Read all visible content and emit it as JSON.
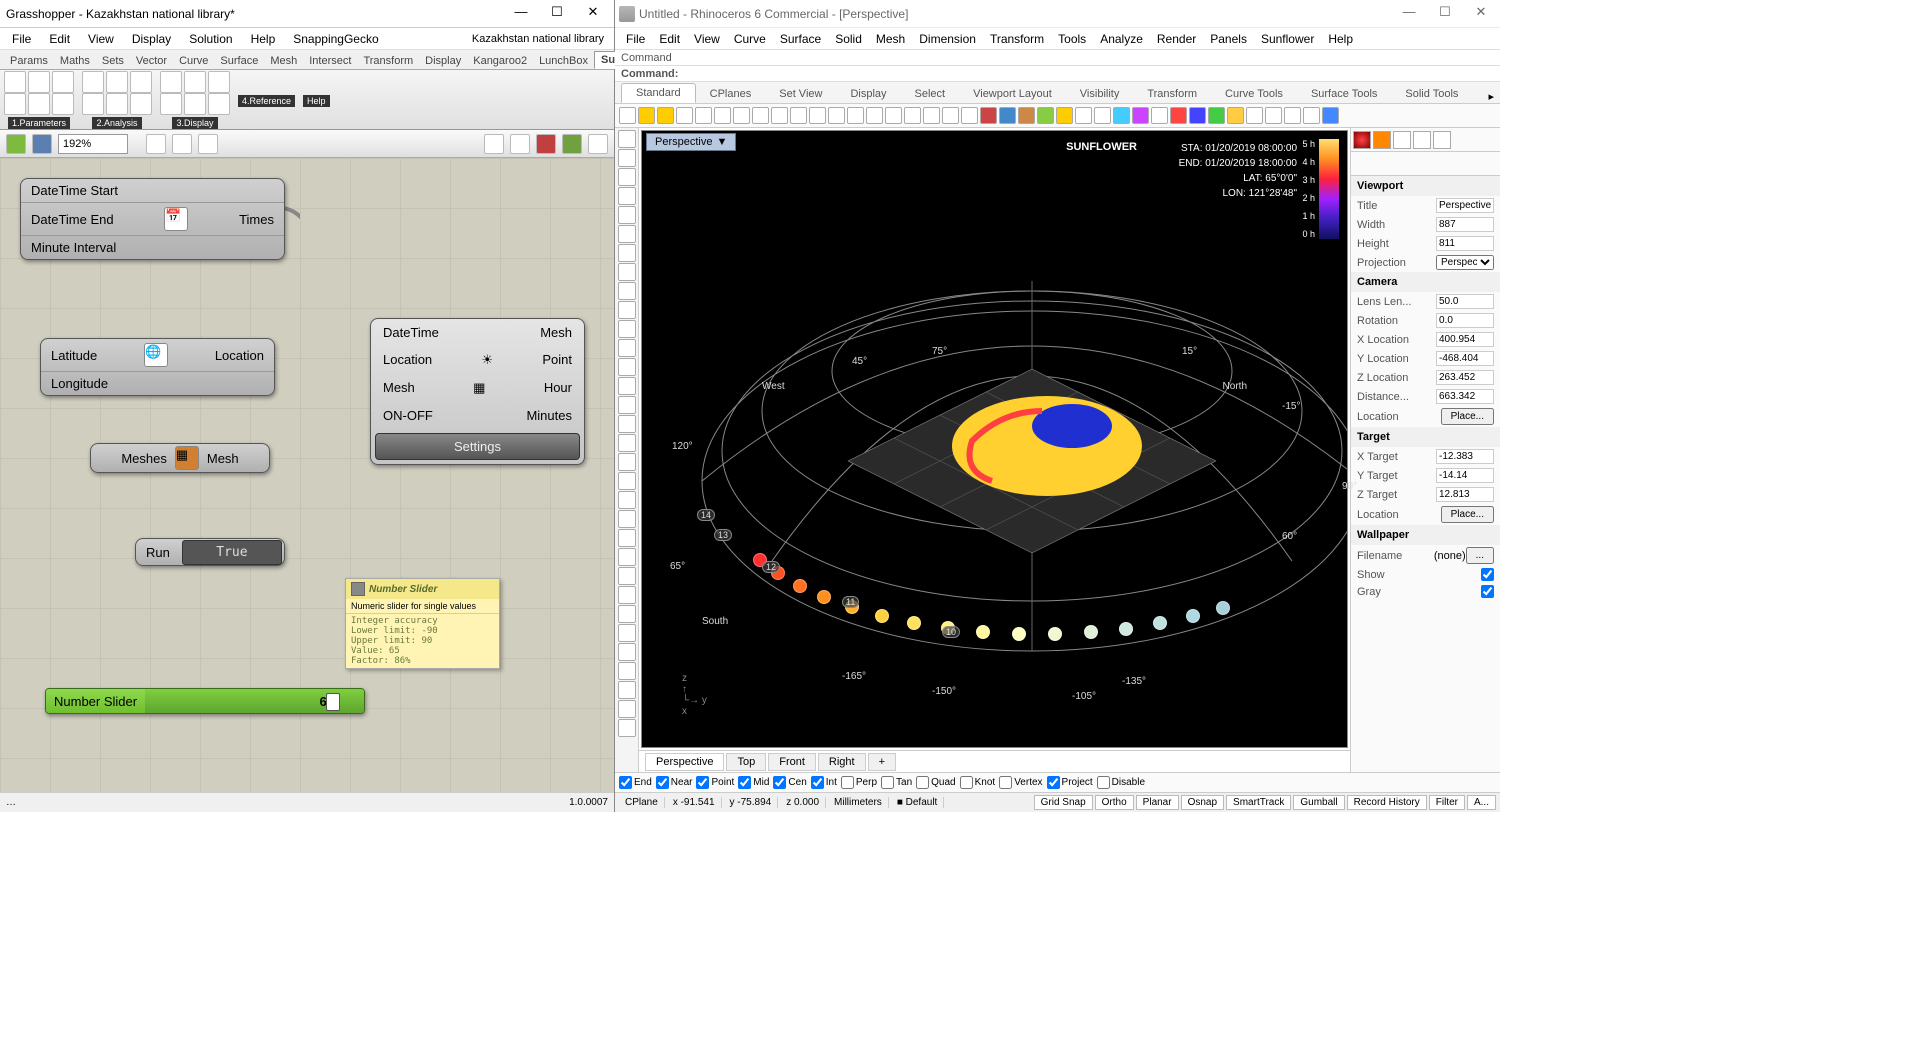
{
  "grasshopper": {
    "title": "Grasshopper - Kazakhstan national library*",
    "menus": [
      "File",
      "Edit",
      "View",
      "Display",
      "Solution",
      "Help",
      "SnappingGecko"
    ],
    "doc_label": "Kazakhstan national library",
    "tabs": [
      "Params",
      "Maths",
      "Sets",
      "Vector",
      "Curve",
      "Surface",
      "Mesh",
      "Intersect",
      "Transform",
      "Display",
      "Kangaroo2",
      "LunchBox",
      "Sunflower"
    ],
    "active_tab": "Sunflower",
    "ribbon_groups": [
      "1.Parameters",
      "2.Analysis",
      "3.Display",
      "4.Reference",
      "Help"
    ],
    "zoom": "192%",
    "version": "1.0.0007",
    "nodes": {
      "datetime": {
        "in": [
          "DateTime Start",
          "DateTime End",
          "Minute Interval"
        ],
        "out": "Times"
      },
      "latlon": {
        "in": [
          "Latitude",
          "Longitude"
        ],
        "out": "Location"
      },
      "meshes": {
        "in": "Meshes",
        "out": "Mesh"
      },
      "run": {
        "label": "Run",
        "value": "True"
      },
      "big": {
        "left": [
          "DateTime",
          "Location",
          "Mesh",
          "ON-OFF"
        ],
        "right": [
          "Mesh",
          "Point",
          "Hour",
          "Minutes"
        ],
        "settings": "Settings"
      }
    },
    "tooltip": {
      "title": "Number Slider",
      "desc": "Numeric slider for single values",
      "details": "Integer accuracy\nLower limit: -90\nUpper limit: 90\nValue: 65\nFactor: 86%"
    },
    "slider": {
      "label": "Number Slider",
      "value": "65"
    }
  },
  "rhino": {
    "title": "Untitled - Rhinoceros 6 Commercial - [Perspective]",
    "menus": [
      "File",
      "Edit",
      "View",
      "Curve",
      "Surface",
      "Solid",
      "Mesh",
      "Dimension",
      "Transform",
      "Tools",
      "Analyze",
      "Render",
      "Panels",
      "Sunflower",
      "Help"
    ],
    "command_label": "Command",
    "command_prompt": "Command:",
    "tabs": [
      "Standard",
      "CPlanes",
      "Set View",
      "Display",
      "Select",
      "Viewport Layout",
      "Visibility",
      "Transform",
      "Curve Tools",
      "Surface Tools",
      "Solid Tools"
    ],
    "active_tab": "Standard",
    "viewport_label": "Perspective",
    "overlay": {
      "title": "SUNFLOWER",
      "lines": [
        "STA: 01/20/2019 08:00:00",
        "END: 01/20/2019 18:00:00",
        "LAT: 65°0'0\"",
        "LON: 121°28'48\""
      ]
    },
    "gradient_labels": [
      "5 h",
      "4 h",
      "3 h",
      "2 h",
      "1 h",
      "0 h"
    ],
    "gradient_colors": [
      "#ffe070",
      "#ff9020",
      "#ff2040",
      "#a020ff",
      "#4020c0",
      "#101060"
    ],
    "compass": [
      "North",
      "South",
      "West"
    ],
    "angle_labels": [
      "120°",
      "65°",
      "15°",
      "-15°",
      "-105°",
      "-135°",
      "-165°",
      "-150°",
      "45°",
      "75°",
      "60°",
      "90°"
    ],
    "sun_hours": [
      "14",
      "13",
      "12",
      "11",
      "10"
    ],
    "vp_tabs": [
      "Perspective",
      "Top",
      "Front",
      "Right"
    ],
    "opts": [
      "End",
      "Near",
      "Point",
      "Mid",
      "Cen",
      "Int",
      "Perp",
      "Tan",
      "Quad",
      "Knot",
      "Vertex",
      "Project",
      "Disable"
    ],
    "opts_checked": [
      "End",
      "Near",
      "Point",
      "Mid",
      "Cen",
      "Int",
      "Project"
    ],
    "status": {
      "cplane": "CPlane",
      "x": "x -91.541",
      "y": "y -75.894",
      "z": "z 0.000",
      "units": "Millimeters",
      "layer": "Default",
      "buttons": [
        "Grid Snap",
        "Ortho",
        "Planar",
        "Osnap",
        "SmartTrack",
        "Gumball",
        "Record History",
        "Filter",
        "A..."
      ]
    },
    "props": {
      "viewport": {
        "Title": "Perspective",
        "Width": "887",
        "Height": "811",
        "Projection": "Perspec..."
      },
      "camera": {
        "Lens Len...": "50.0",
        "Rotation": "0.0",
        "X Location": "400.954",
        "Y Location": "-468.404",
        "Z Location": "263.452",
        "Distance...": "663.342",
        "Location": "Place..."
      },
      "target": {
        "X Target": "-12.383",
        "Y Target": "-14.14",
        "Z Target": "12.813",
        "Location": "Place..."
      },
      "wallpaper": {
        "Filename": "(none)",
        "Show": true,
        "Gray": true
      }
    }
  },
  "colors": {
    "slider_green": "#6fbf2f",
    "canvas_bg": "#d0cebf"
  }
}
